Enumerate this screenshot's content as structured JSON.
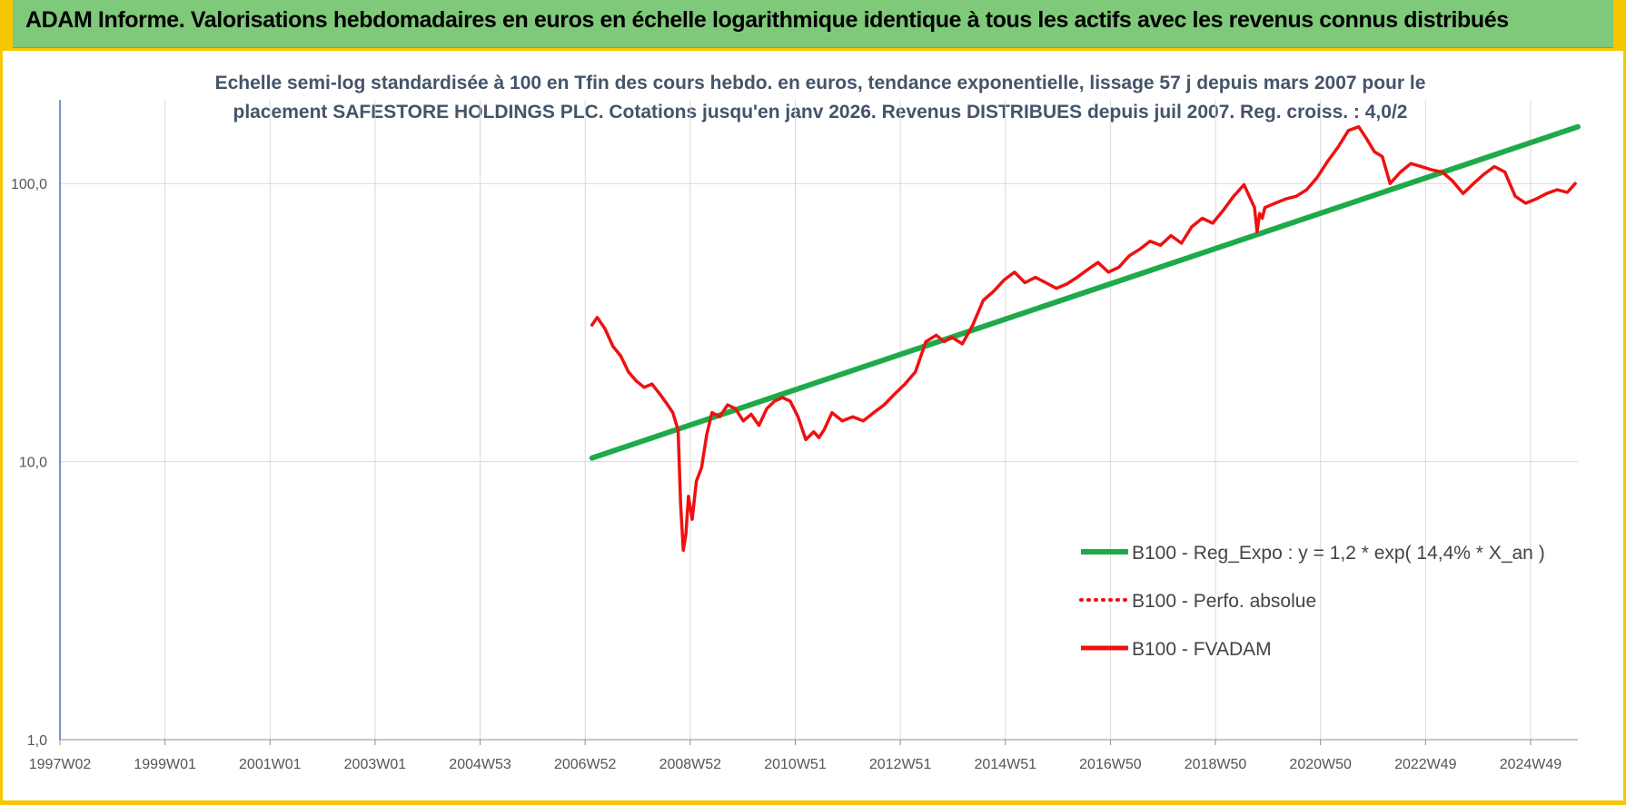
{
  "banner": {
    "title": "ADAM Informe. Valorisations hebdomadaires en euros en échelle logarithmique identique à tous les actifs avec les revenus connus distribués"
  },
  "colors": {
    "banner_bg": "#7fc97a",
    "frame": "#f6c700",
    "regression": "#1faa4a",
    "fvadam": "#ee1111",
    "subtitle": "#44546a"
  },
  "chart_data": {
    "type": "line",
    "title": "Echelle semi-log standardisée à 100 en Tfin des cours hebdo. en euros, tendance exponentielle, lissage 57 j depuis mars 2007 pour le placement SAFESTORE HOLDINGS PLC. Cotations jusqu'en janv 2026. Revenus DISTRIBUES depuis juil 2007. Reg. croiss. : 4,0/2",
    "title_lines": [
      "Echelle semi-log standardisée à 100 en Tfin des cours hebdo. en euros, tendance exponentielle, lissage 57 j depuis mars 2007 pour le",
      "placement SAFESTORE HOLDINGS PLC. Cotations jusqu'en janv 2026. Revenus DISTRIBUES depuis juil 2007. Reg. croiss. : 4,0/2"
    ],
    "y_scale": "log",
    "ylim": [
      1,
      200
    ],
    "xlim": [
      1997.0,
      2026.1
    ],
    "y_ticks": [
      "1,0",
      "10,0",
      "100,0"
    ],
    "y_tick_values": [
      1,
      10,
      100
    ],
    "x_ticks": [
      "1997W02",
      "1999W01",
      "2001W01",
      "2003W01",
      "2004W53",
      "2006W52",
      "2008W52",
      "2010W51",
      "2012W51",
      "2014W51",
      "2016W50",
      "2018W50",
      "2020W50",
      "2022W49",
      "2024W49"
    ],
    "grid": true,
    "legend_position": "bottom-right",
    "series": [
      {
        "name": "B100 - Reg_Expo : y = 1,2 * exp( 14,4% *  X_an )",
        "style": "solid-thick",
        "x": [
          2007.2,
          2026.1
        ],
        "y": [
          10.3,
          160
        ]
      },
      {
        "name": "B100 - Perfo. absolue",
        "style": "dotted",
        "x": [],
        "y": []
      },
      {
        "name": "B100 - FVADAM",
        "style": "solid",
        "x": [
          2007.2,
          2007.3,
          2007.45,
          2007.6,
          2007.75,
          2007.9,
          2008.05,
          2008.2,
          2008.35,
          2008.5,
          2008.65,
          2008.75,
          2008.85,
          2008.9,
          2008.95,
          2009.0,
          2009.05,
          2009.12,
          2009.2,
          2009.3,
          2009.4,
          2009.5,
          2009.65,
          2009.8,
          2009.95,
          2010.1,
          2010.25,
          2010.4,
          2010.55,
          2010.7,
          2010.85,
          2011.0,
          2011.15,
          2011.3,
          2011.45,
          2011.55,
          2011.65,
          2011.8,
          2012.0,
          2012.2,
          2012.4,
          2012.6,
          2012.8,
          2013.0,
          2013.2,
          2013.4,
          2013.6,
          2013.8,
          2013.95,
          2014.1,
          2014.3,
          2014.5,
          2014.7,
          2014.9,
          2015.1,
          2015.3,
          2015.5,
          2015.7,
          2015.9,
          2016.1,
          2016.3,
          2016.5,
          2016.7,
          2016.9,
          2017.1,
          2017.3,
          2017.5,
          2017.7,
          2017.9,
          2018.1,
          2018.3,
          2018.5,
          2018.7,
          2018.9,
          2019.1,
          2019.3,
          2019.5,
          2019.7,
          2019.9,
          2019.95,
          2020.0,
          2020.05,
          2020.1,
          2020.3,
          2020.5,
          2020.7,
          2020.9,
          2021.1,
          2021.3,
          2021.5,
          2021.7,
          2021.9,
          2022.05,
          2022.2,
          2022.35,
          2022.5,
          2022.7,
          2022.9,
          2023.1,
          2023.3,
          2023.5,
          2023.7,
          2023.9,
          2024.1,
          2024.3,
          2024.5,
          2024.7,
          2024.9,
          2025.1,
          2025.3,
          2025.5,
          2025.7,
          2025.9,
          2026.05
        ],
        "y": [
          31.0,
          33.0,
          30.0,
          26.0,
          24.0,
          21.0,
          19.5,
          18.5,
          19.0,
          17.5,
          16.0,
          15.0,
          13.0,
          7.0,
          4.8,
          5.5,
          7.5,
          6.2,
          8.5,
          9.5,
          12.5,
          15.0,
          14.5,
          16.0,
          15.5,
          14.0,
          14.8,
          13.5,
          15.5,
          16.5,
          17.0,
          16.5,
          14.5,
          12.0,
          12.8,
          12.2,
          13.0,
          15.0,
          14.0,
          14.5,
          14.0,
          15.0,
          16.0,
          17.5,
          19.0,
          21.0,
          27.0,
          28.5,
          27.0,
          28.0,
          26.5,
          31.0,
          38.0,
          41.0,
          45.0,
          48.0,
          44.0,
          46.0,
          44.0,
          42.0,
          43.5,
          46.0,
          49.0,
          52.0,
          48.0,
          50.0,
          55.0,
          58.0,
          62.0,
          60.0,
          65.0,
          61.0,
          70.0,
          75.0,
          72.0,
          80.0,
          90.0,
          99.0,
          82.0,
          67.0,
          78.0,
          75.0,
          82.0,
          85.0,
          88.0,
          90.0,
          95.0,
          105.0,
          120.0,
          135.0,
          155.0,
          160.0,
          145.0,
          130.0,
          125.0,
          100.0,
          110.0,
          118.0,
          115.0,
          112.0,
          110.0,
          102.0,
          92.0,
          100.0,
          108.0,
          115.0,
          110.0,
          90.0,
          85.0,
          88.0,
          92.0,
          95.0,
          93.0,
          100.0
        ]
      }
    ]
  }
}
